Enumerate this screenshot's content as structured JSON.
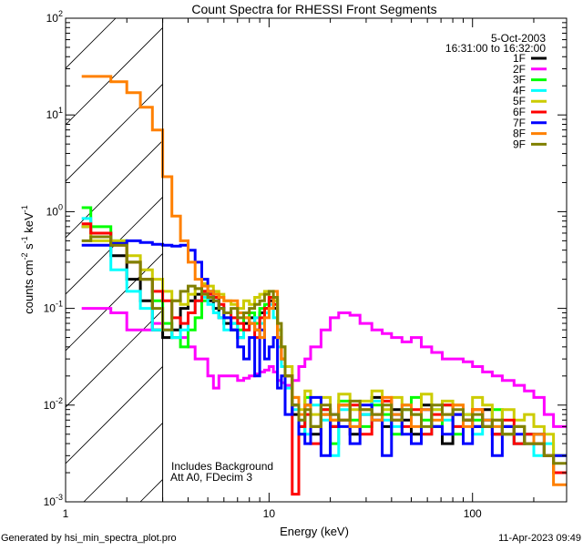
{
  "chart_data": {
    "type": "line",
    "title": "Count Spectra for RHESSI Front Segments",
    "xlabel": "Energy (keV)",
    "ylabel": {
      "base": "counts cm",
      "e1": "-2",
      "mid": " s",
      "e2": "-1",
      "end": " keV",
      "e3": "-1"
    },
    "xscale": "log",
    "yscale": "log",
    "xlim": [
      1,
      290
    ],
    "ylim": [
      0.001,
      100
    ],
    "x_ticks": [
      {
        "v": 1,
        "label": "1"
      },
      {
        "v": 10,
        "label": "10"
      },
      {
        "v": 100,
        "label": "100"
      }
    ],
    "y_ticks": [
      {
        "v": 0.001,
        "base": "10",
        "exp": "-3"
      },
      {
        "v": 0.01,
        "base": "10",
        "exp": "-2"
      },
      {
        "v": 0.1,
        "base": "10",
        "exp": "-1"
      },
      {
        "v": 1,
        "base": "10",
        "exp": "0"
      },
      {
        "v": 10,
        "base": "10",
        "exp": "1"
      },
      {
        "v": 100,
        "base": "10",
        "exp": "2"
      }
    ],
    "shaded_region_keV": [
      1,
      3
    ],
    "legend_placement": "top-right",
    "annotations": {
      "date": "5-Oct-2003",
      "time_range": "16:31:00 to 16:32:00",
      "note1": "Includes Background",
      "note2": "Att A0, FDecim 3"
    },
    "bin_edges_keV": [
      1.2,
      1.33,
      1.67,
      2.0,
      2.33,
      2.67,
      3.0,
      3.33,
      3.67,
      4.0,
      4.33,
      4.67,
      5.0,
      5.33,
      5.67,
      6.0,
      6.5,
      7,
      7.5,
      8,
      8.5,
      9,
      9.5,
      10,
      10.5,
      11,
      11.5,
      12,
      13,
      14,
      15,
      16,
      18,
      20,
      22,
      25,
      28,
      32,
      36,
      40,
      45,
      50,
      56,
      63,
      71,
      80,
      90,
      100,
      112,
      125,
      140,
      160,
      180,
      200,
      225,
      250,
      290
    ],
    "series": [
      {
        "name": "1F",
        "color": "#000000",
        "values": [
          0.7,
          0.6,
          0.35,
          0.2,
          0.12,
          0.06,
          0.05,
          0.06,
          0.1,
          0.12,
          0.14,
          0.15,
          0.12,
          0.1,
          0.08,
          0.07,
          0.06,
          0.05,
          0.07,
          0.08,
          0.06,
          0.09,
          0.1,
          0.12,
          0.1,
          0.05,
          0.03,
          0.02,
          0.008,
          0.006,
          0.01,
          0.005,
          0.008,
          0.006,
          0.01,
          0.005,
          0.008,
          0.012,
          0.006,
          0.009,
          0.007,
          0.005,
          0.01,
          0.006,
          0.004,
          0.008,
          0.007,
          0.006,
          0.009,
          0.005,
          0.006,
          0.004,
          0.005,
          0.004,
          0.003,
          0.002
        ]
      },
      {
        "name": "2F",
        "color": "#ff00ff",
        "values": [
          0.1,
          0.1,
          0.09,
          0.06,
          0.06,
          0.07,
          0.06,
          0.05,
          0.05,
          0.04,
          0.03,
          0.03,
          0.02,
          0.015,
          0.02,
          0.02,
          0.02,
          0.018,
          0.019,
          0.02,
          0.021,
          0.022,
          0.023,
          0.025,
          0.022,
          0.018,
          0.017,
          0.016,
          0.018,
          0.025,
          0.03,
          0.04,
          0.06,
          0.08,
          0.09,
          0.085,
          0.07,
          0.06,
          0.055,
          0.05,
          0.045,
          0.05,
          0.04,
          0.035,
          0.03,
          0.03,
          0.028,
          0.025,
          0.022,
          0.02,
          0.018,
          0.016,
          0.014,
          0.012,
          0.008,
          0.006
        ]
      },
      {
        "name": "3F",
        "color": "#00ff00",
        "values": [
          1.1,
          0.7,
          0.5,
          0.3,
          0.2,
          0.12,
          0.07,
          0.05,
          0.04,
          0.06,
          0.08,
          0.12,
          0.15,
          0.14,
          0.1,
          0.08,
          0.07,
          0.06,
          0.08,
          0.09,
          0.07,
          0.1,
          0.11,
          0.13,
          0.12,
          0.06,
          0.04,
          0.02,
          0.01,
          0.005,
          0.012,
          0.006,
          0.009,
          0.004,
          0.011,
          0.007,
          0.006,
          0.01,
          0.008,
          0.005,
          0.009,
          0.012,
          0.007,
          0.006,
          0.01,
          0.005,
          0.008,
          0.007,
          0.006,
          0.009,
          0.005,
          0.006,
          0.004,
          0.005,
          0.003,
          0.003
        ]
      },
      {
        "name": "4F",
        "color": "#00ffff",
        "values": [
          0.85,
          0.55,
          0.25,
          0.15,
          0.1,
          0.06,
          0.06,
          0.05,
          0.06,
          0.09,
          0.12,
          0.13,
          0.11,
          0.09,
          0.08,
          0.06,
          0.07,
          0.05,
          0.06,
          0.07,
          0.08,
          0.07,
          0.09,
          0.11,
          0.08,
          0.04,
          0.025,
          0.015,
          0.009,
          0.007,
          0.005,
          0.01,
          0.007,
          0.003,
          0.009,
          0.006,
          0.008,
          0.011,
          0.007,
          0.006,
          0.01,
          0.008,
          0.005,
          0.009,
          0.007,
          0.006,
          0.008,
          0.005,
          0.007,
          0.006,
          0.005,
          0.004,
          0.005,
          0.003,
          0.004,
          0.002
        ]
      },
      {
        "name": "5F",
        "color": "#cccc00",
        "values": [
          0.7,
          0.5,
          0.5,
          0.35,
          0.25,
          0.2,
          0.15,
          0.12,
          0.11,
          0.14,
          0.16,
          0.18,
          0.17,
          0.15,
          0.14,
          0.12,
          0.11,
          0.1,
          0.12,
          0.11,
          0.13,
          0.14,
          0.15,
          0.13,
          0.12,
          0.06,
          0.04,
          0.025,
          0.012,
          0.009,
          0.014,
          0.008,
          0.012,
          0.007,
          0.013,
          0.009,
          0.011,
          0.014,
          0.009,
          0.012,
          0.01,
          0.008,
          0.013,
          0.009,
          0.011,
          0.01,
          0.008,
          0.012,
          0.01,
          0.007,
          0.009,
          0.007,
          0.008,
          0.006,
          0.005,
          0.003
        ]
      },
      {
        "name": "6F",
        "color": "#ff0000",
        "values": [
          0.75,
          0.6,
          0.45,
          0.3,
          0.2,
          0.15,
          0.12,
          0.08,
          0.07,
          0.09,
          0.12,
          0.15,
          0.14,
          0.13,
          0.11,
          0.09,
          0.08,
          0.07,
          0.06,
          0.07,
          0.05,
          0.08,
          0.1,
          0.13,
          0.11,
          0.05,
          0.03,
          0.02,
          0.0012,
          0.006,
          0.008,
          0.004,
          0.009,
          0.006,
          0.007,
          0.01,
          0.005,
          0.008,
          0.011,
          0.007,
          0.006,
          0.009,
          0.005,
          0.008,
          0.01,
          0.006,
          0.007,
          0.009,
          0.006,
          0.005,
          0.007,
          0.004,
          0.005,
          0.004,
          0.003,
          0.002
        ]
      },
      {
        "name": "7F",
        "color": "#0000ff",
        "values": [
          0.45,
          0.45,
          0.47,
          0.5,
          0.48,
          0.46,
          0.45,
          0.44,
          0.45,
          0.4,
          0.3,
          0.2,
          0.15,
          0.12,
          0.1,
          0.08,
          0.06,
          0.04,
          0.03,
          0.05,
          0.02,
          0.06,
          0.03,
          0.04,
          0.05,
          0.015,
          0.02,
          0.008,
          0.01,
          0.005,
          0.004,
          0.012,
          0.003,
          0.008,
          0.006,
          0.004,
          0.01,
          0.007,
          0.003,
          0.008,
          0.005,
          0.004,
          0.009,
          0.006,
          0.005,
          0.008,
          0.004,
          0.006,
          0.007,
          0.003,
          0.006,
          0.005,
          0.004,
          0.005,
          0.003,
          0.003
        ]
      },
      {
        "name": "8F",
        "color": "#ff8000",
        "values": [
          25,
          25,
          22,
          17,
          12,
          7,
          2.3,
          0.9,
          0.5,
          0.3,
          0.2,
          0.17,
          0.15,
          0.14,
          0.13,
          0.12,
          0.12,
          0.09,
          0.08,
          0.07,
          0.06,
          0.05,
          0.08,
          0.1,
          0.15,
          0.05,
          0.03,
          0.02,
          0.012,
          0.008,
          0.01,
          0.006,
          0.008,
          0.007,
          0.01,
          0.006,
          0.009,
          0.007,
          0.012,
          0.008,
          0.01,
          0.006,
          0.009,
          0.007,
          0.008,
          0.01,
          0.006,
          0.009,
          0.007,
          0.006,
          0.005,
          0.006,
          0.004,
          0.005,
          0.003,
          0.0015
        ]
      },
      {
        "name": "9F",
        "color": "#808000",
        "values": [
          0.5,
          0.55,
          0.45,
          0.3,
          0.2,
          0.1,
          0.06,
          0.12,
          0.15,
          0.17,
          0.16,
          0.14,
          0.13,
          0.12,
          0.1,
          0.09,
          0.1,
          0.08,
          0.09,
          0.1,
          0.11,
          0.12,
          0.14,
          0.15,
          0.13,
          0.07,
          0.04,
          0.02,
          0.01,
          0.007,
          0.009,
          0.006,
          0.01,
          0.008,
          0.007,
          0.011,
          0.009,
          0.008,
          0.01,
          0.007,
          0.009,
          0.008,
          0.006,
          0.01,
          0.008,
          0.009,
          0.007,
          0.008,
          0.006,
          0.007,
          0.005,
          0.006,
          0.004,
          0.004,
          0.003,
          0.0025
        ]
      }
    ]
  },
  "footer": {
    "generated_by": "Generated by hsi_min_spectra_plot.pro",
    "timestamp": "11-Apr-2023 09:49"
  }
}
